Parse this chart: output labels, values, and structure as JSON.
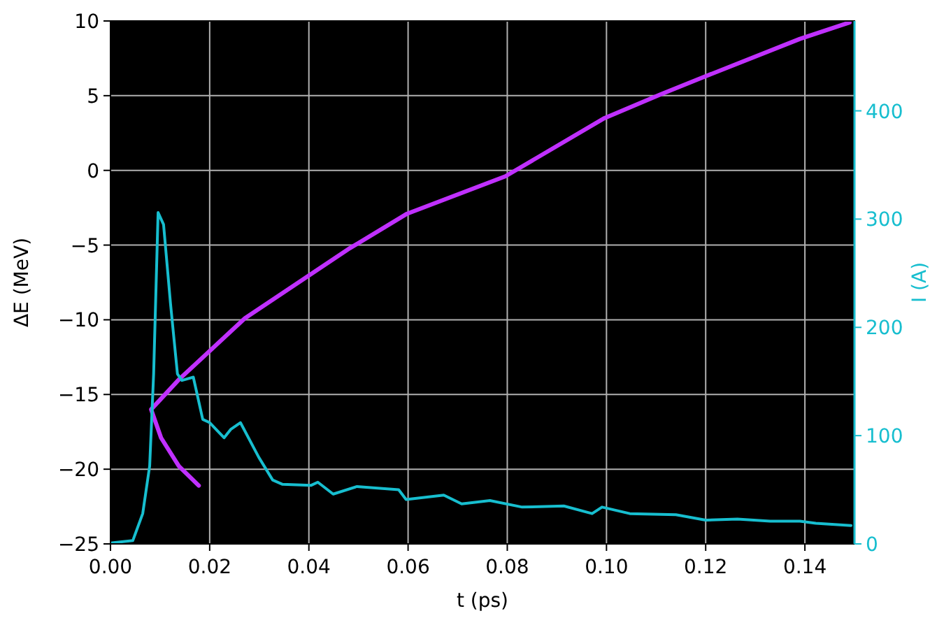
{
  "chart_data": {
    "type": "line",
    "xlabel": "t (ps)",
    "ylabel": "ΔE (MeV)",
    "y2label": "I (A)",
    "xlim": [
      0,
      0.15
    ],
    "ylim": [
      -25,
      10
    ],
    "y2lim": [
      0,
      483
    ],
    "xticks": [
      {
        "value": 0,
        "label": "0.00"
      },
      {
        "value": 0.02,
        "label": "0.02"
      },
      {
        "value": 0.04,
        "label": "0.04"
      },
      {
        "value": 0.06,
        "label": "0.06"
      },
      {
        "value": 0.08,
        "label": "0.08"
      },
      {
        "value": 0.1,
        "label": "0.10"
      },
      {
        "value": 0.12,
        "label": "0.12"
      },
      {
        "value": 0.14,
        "label": "0.14"
      }
    ],
    "yticks": [
      {
        "value": -25,
        "label": "−25"
      },
      {
        "value": -20,
        "label": "−20"
      },
      {
        "value": -15,
        "label": "−15"
      },
      {
        "value": -10,
        "label": "−10"
      },
      {
        "value": -5,
        "label": "−5"
      },
      0,
      5,
      10
    ],
    "y2ticks": [
      0,
      100,
      200,
      300,
      400
    ],
    "grid": true,
    "marker": "none",
    "line_style": "solid",
    "series": [
      {
        "color": "#c030ff",
        "x": [
          0.0178,
          0.0138,
          0.0102,
          0.0082,
          0.0138,
          0.0271,
          0.0483,
          0.0598,
          0.0796,
          0.0996,
          0.111,
          0.12,
          0.139,
          0.149
        ],
        "values": [
          -21.1,
          -19.8,
          -17.9,
          -16.0,
          -14.0,
          -9.9,
          -5.2,
          -2.9,
          -0.4,
          3.5,
          5.1,
          6.3,
          8.8,
          9.9
        ]
      },
      {
        "color": "#17becf",
        "axis": "y2",
        "x": [
          0.0003,
          0.0045,
          0.0065,
          0.0079,
          0.0087,
          0.0096,
          0.0107,
          0.0121,
          0.0135,
          0.0144,
          0.0167,
          0.0186,
          0.02,
          0.0229,
          0.0243,
          0.0262,
          0.0299,
          0.0327,
          0.0347,
          0.0404,
          0.0418,
          0.0449,
          0.0497,
          0.0581,
          0.0596,
          0.0672,
          0.0708,
          0.0765,
          0.083,
          0.0914,
          0.0971,
          0.0991,
          0.1047,
          0.114,
          0.12,
          0.1264,
          0.133,
          0.139,
          0.1422,
          0.1493
        ],
        "values": [
          1,
          3,
          28,
          72,
          157,
          306,
          295,
          222,
          157,
          151,
          154,
          115,
          112,
          98,
          106,
          112,
          80,
          59,
          55,
          54,
          57,
          46,
          53,
          50,
          41,
          45,
          37,
          40,
          34,
          35,
          28,
          34,
          28,
          27,
          22,
          23,
          21,
          21,
          19,
          17
        ]
      }
    ]
  }
}
